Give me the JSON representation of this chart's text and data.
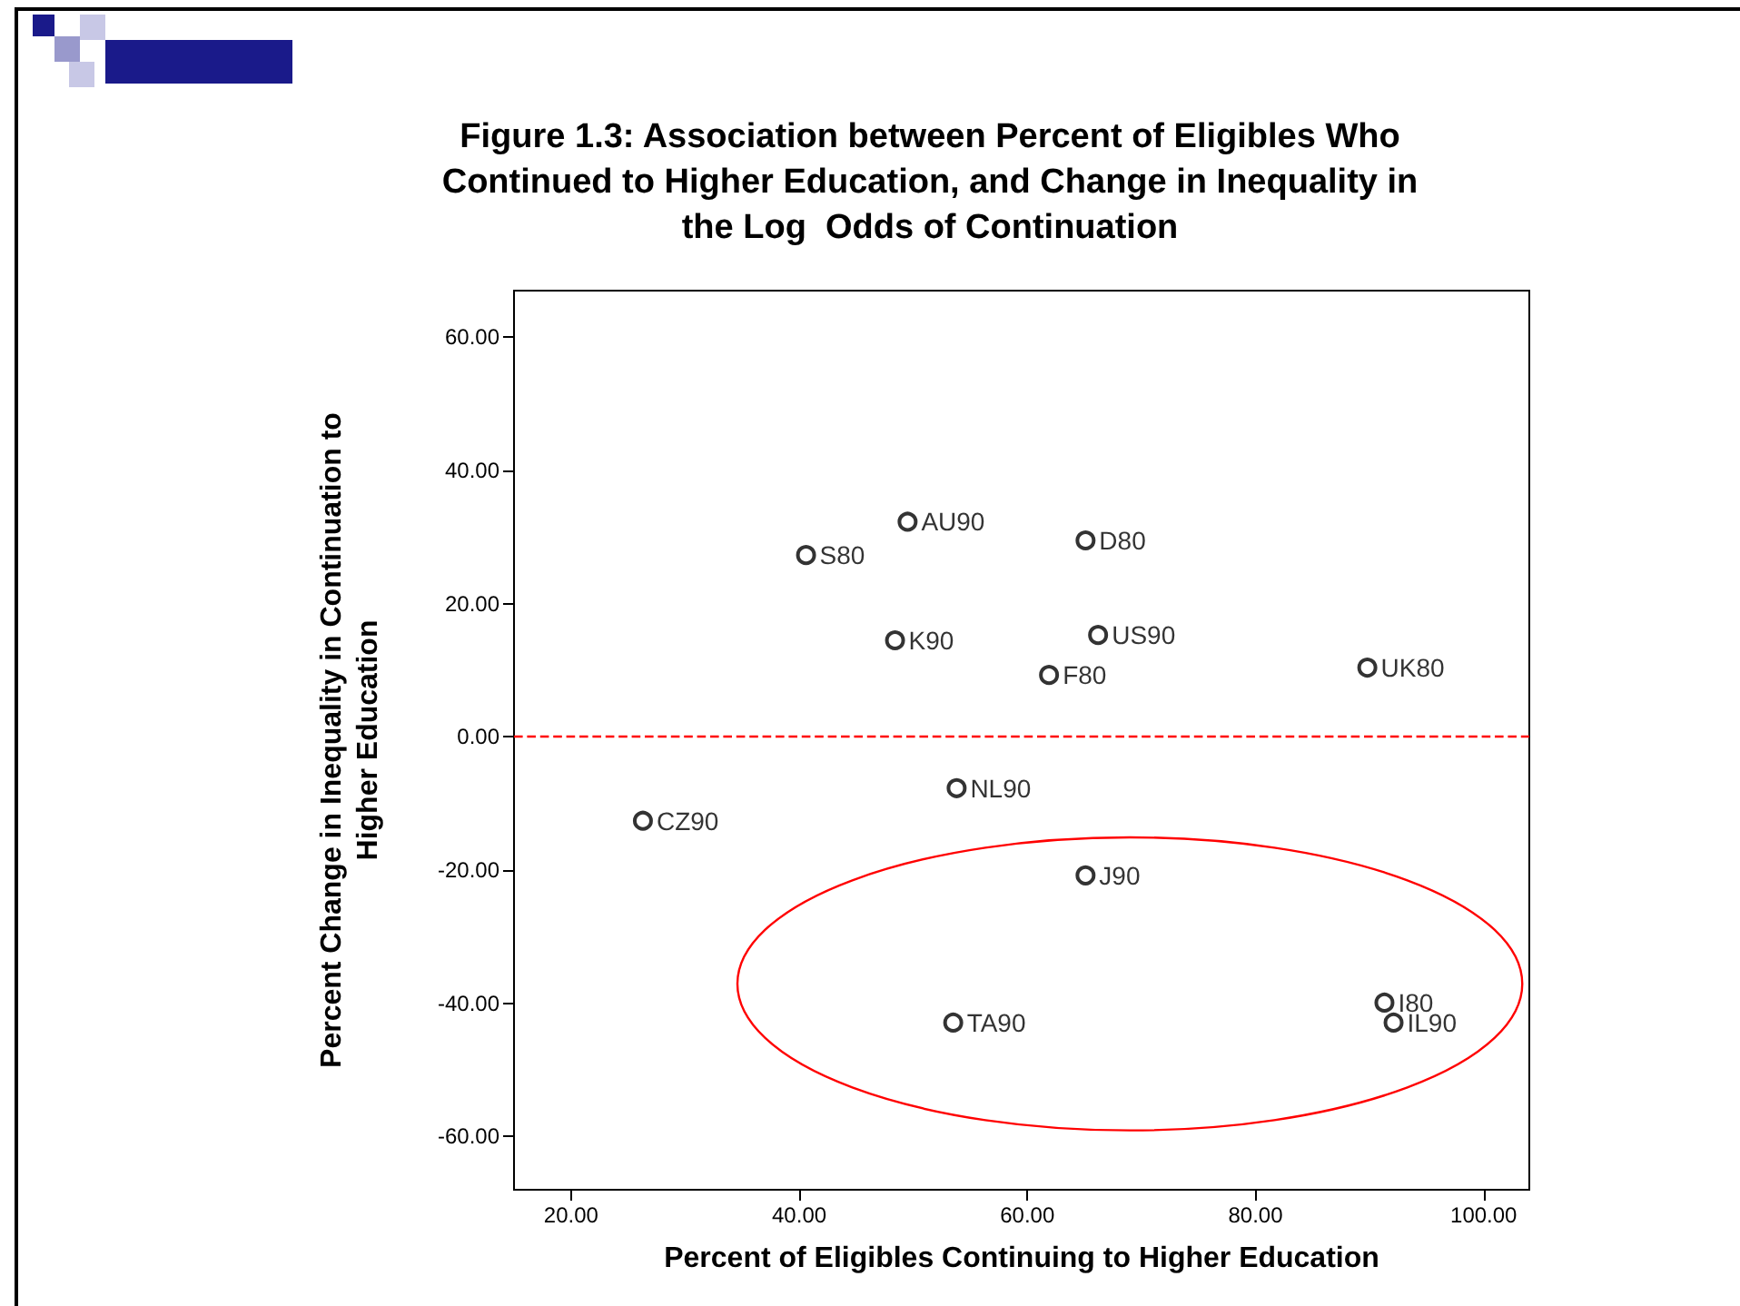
{
  "chart_data": {
    "type": "scatter",
    "title": "Figure 1.3: Association between Percent of Eligibles Who\nContinued to Higher Education, and Change in Inequality in\nthe Log  Odds of Continuation",
    "xlabel": "Percent of Eligibles Continuing to Higher Education",
    "ylabel": "Percent Change in Inequality in Continuation to\nHigher Education",
    "x": [
      49.5,
      40.6,
      65.1,
      48.4,
      66.2,
      61.9,
      89.8,
      53.8,
      26.3,
      65.1,
      91.3,
      92.1,
      53.5
    ],
    "values": [
      32.3,
      27.3,
      29.5,
      14.5,
      15.3,
      9.3,
      10.4,
      -7.7,
      -12.6,
      -20.8,
      -39.9,
      -42.9,
      -42.9
    ],
    "value_labels": [
      "AU90",
      "S80",
      "D80",
      "K90",
      "US90",
      "F80",
      "UK80",
      "NL90",
      "CZ90",
      "J90",
      "I80",
      "IL90",
      "TA90"
    ],
    "color": "#000000",
    "marker": "circle",
    "grid": false,
    "xlim": [
      15,
      104
    ],
    "xticks": [
      {
        "value": 20,
        "label": "20.00"
      },
      {
        "value": 40,
        "label": "40.00"
      },
      {
        "value": 60,
        "label": "60.00"
      },
      {
        "value": 80,
        "label": "80.00"
      },
      {
        "value": 100,
        "label": "100.00"
      }
    ],
    "ylim": [
      -68,
      67
    ],
    "yticks": [
      {
        "value": -60,
        "label": "-60.00"
      },
      {
        "value": -40,
        "label": "-40.00"
      },
      {
        "value": -20,
        "label": "-20.00"
      },
      {
        "value": 0,
        "label": "0.00"
      },
      {
        "value": 20,
        "label": "20.00"
      },
      {
        "value": 40,
        "label": "40.00"
      },
      {
        "value": 60,
        "label": "60.00"
      }
    ],
    "ref_lines": [
      {
        "axis": "y",
        "value": 0,
        "color": "#ff0000",
        "line_style": "dashed"
      }
    ]
  }
}
